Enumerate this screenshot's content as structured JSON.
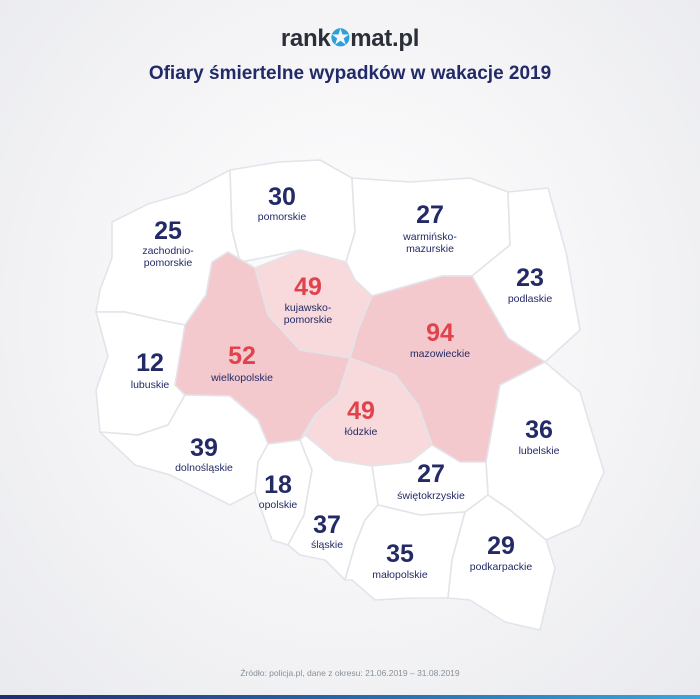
{
  "logo": {
    "left": "rank",
    "star": "✪",
    "right": "mat.pl"
  },
  "title": "Ofiary śmiertelne wypadków w wakacje 2019",
  "footer": "Źródło: policja.pl, dane z okresu: 21.06.2019 – 31.08.2019",
  "colors": {
    "highlight_number": "#e0434c",
    "normal_number": "#232a66",
    "highlight_fill": "#f8d9dc",
    "highlight_fill_strong": "#f4c9cd",
    "normal_fill": "#ffffff"
  },
  "regions": [
    {
      "id": "zachodniopomorskie",
      "value": "25",
      "label": [
        "zachodnio-",
        "pomorskie"
      ],
      "highlight": false
    },
    {
      "id": "pomorskie",
      "value": "30",
      "label": [
        "pomorskie"
      ],
      "highlight": false
    },
    {
      "id": "warminsko-mazurskie",
      "value": "27",
      "label": [
        "warmińsko-",
        "mazurskie"
      ],
      "highlight": false
    },
    {
      "id": "podlaskie",
      "value": "23",
      "label": [
        "podlaskie"
      ],
      "highlight": false
    },
    {
      "id": "kujawsko-pomorskie",
      "value": "49",
      "label": [
        "kujawsko-",
        "pomorskie"
      ],
      "highlight": true
    },
    {
      "id": "mazowieckie",
      "value": "94",
      "label": [
        "mazowieckie"
      ],
      "highlight": true
    },
    {
      "id": "lubuskie",
      "value": "12",
      "label": [
        "lubuskie"
      ],
      "highlight": false
    },
    {
      "id": "wielkopolskie",
      "value": "52",
      "label": [
        "wielkopolskie"
      ],
      "highlight": true
    },
    {
      "id": "lodzkie",
      "value": "49",
      "label": [
        "łódzkie"
      ],
      "highlight": true
    },
    {
      "id": "lubelskie",
      "value": "36",
      "label": [
        "lubelskie"
      ],
      "highlight": false
    },
    {
      "id": "dolnoslaskie",
      "value": "39",
      "label": [
        "dolnośląskie"
      ],
      "highlight": false
    },
    {
      "id": "opolskie",
      "value": "18",
      "label": [
        "opolskie"
      ],
      "highlight": false
    },
    {
      "id": "swietokrzyskie",
      "value": "27",
      "label": [
        "świętokrzyskie"
      ],
      "highlight": false
    },
    {
      "id": "slaskie",
      "value": "37",
      "label": [
        "śląskie"
      ],
      "highlight": false
    },
    {
      "id": "malopolskie",
      "value": "35",
      "label": [
        "małopolskie"
      ],
      "highlight": false
    },
    {
      "id": "podkarpackie",
      "value": "29",
      "label": [
        "podkarpackie"
      ],
      "highlight": false
    }
  ]
}
